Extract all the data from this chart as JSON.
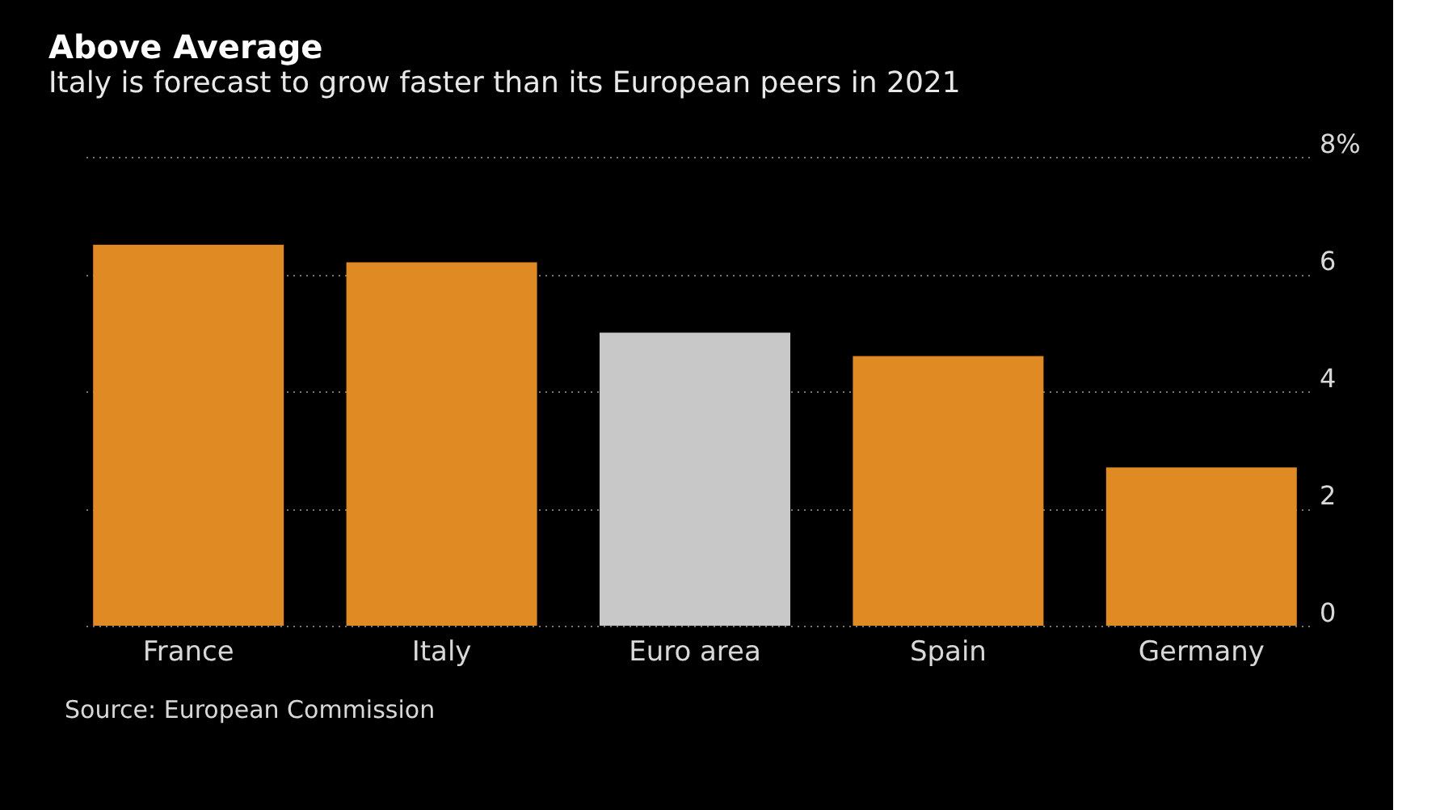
{
  "chart_data": {
    "type": "bar",
    "title": "Above Average",
    "subtitle": "Italy is forecast to grow faster than its European peers in 2021",
    "categories": [
      "France",
      "Italy",
      "Euro area",
      "Spain",
      "Germany"
    ],
    "values": [
      6.5,
      6.2,
      5.0,
      4.6,
      2.7
    ],
    "colors": [
      "#e08a24",
      "#e08a24",
      "#c8c8c8",
      "#e08a24",
      "#e08a24"
    ],
    "ylim": [
      0,
      8
    ],
    "yticks": [
      0,
      2,
      4,
      6,
      {
        "value": 8,
        "label": "8%"
      }
    ],
    "grid": "y",
    "legend": false,
    "annotations": [
      "Source: European Commission"
    ]
  }
}
